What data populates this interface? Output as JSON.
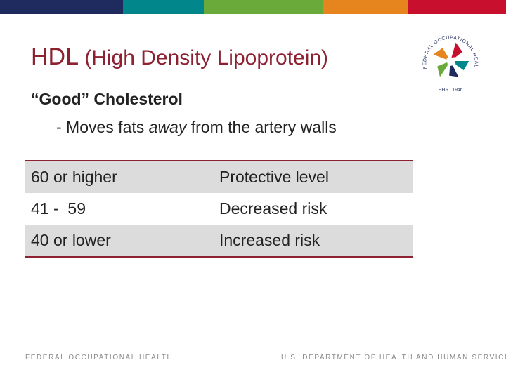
{
  "topbar": {
    "colors": [
      "#1f2a5e",
      "#00868b",
      "#6aaa3a",
      "#e6851e",
      "#c8102e"
    ]
  },
  "slide": {
    "title_main": "HDL",
    "title_sub": "(High Density Lipoprotein)",
    "subheading": "“Good” Cholesterol",
    "bullet_prefix": "- Moves fats ",
    "bullet_em": "away",
    "bullet_suffix": " from the artery walls"
  },
  "table": {
    "rows": [
      {
        "range": "60 or higher",
        "meaning": "Protective level"
      },
      {
        "range": "41 -  59",
        "meaning": "Decreased risk"
      },
      {
        "range": "40 or lower",
        "meaning": "Increased risk"
      }
    ]
  },
  "logo": {
    "ring_text": "FEDERAL OCCUPATIONAL HEALTH",
    "bottom_text": "HHS · 1946"
  },
  "footer": {
    "left": "FEDERAL OCCUPATIONAL HEALTH",
    "right": "U.S. DEPARTMENT OF HEALTH AND HUMAN SERVICES"
  }
}
